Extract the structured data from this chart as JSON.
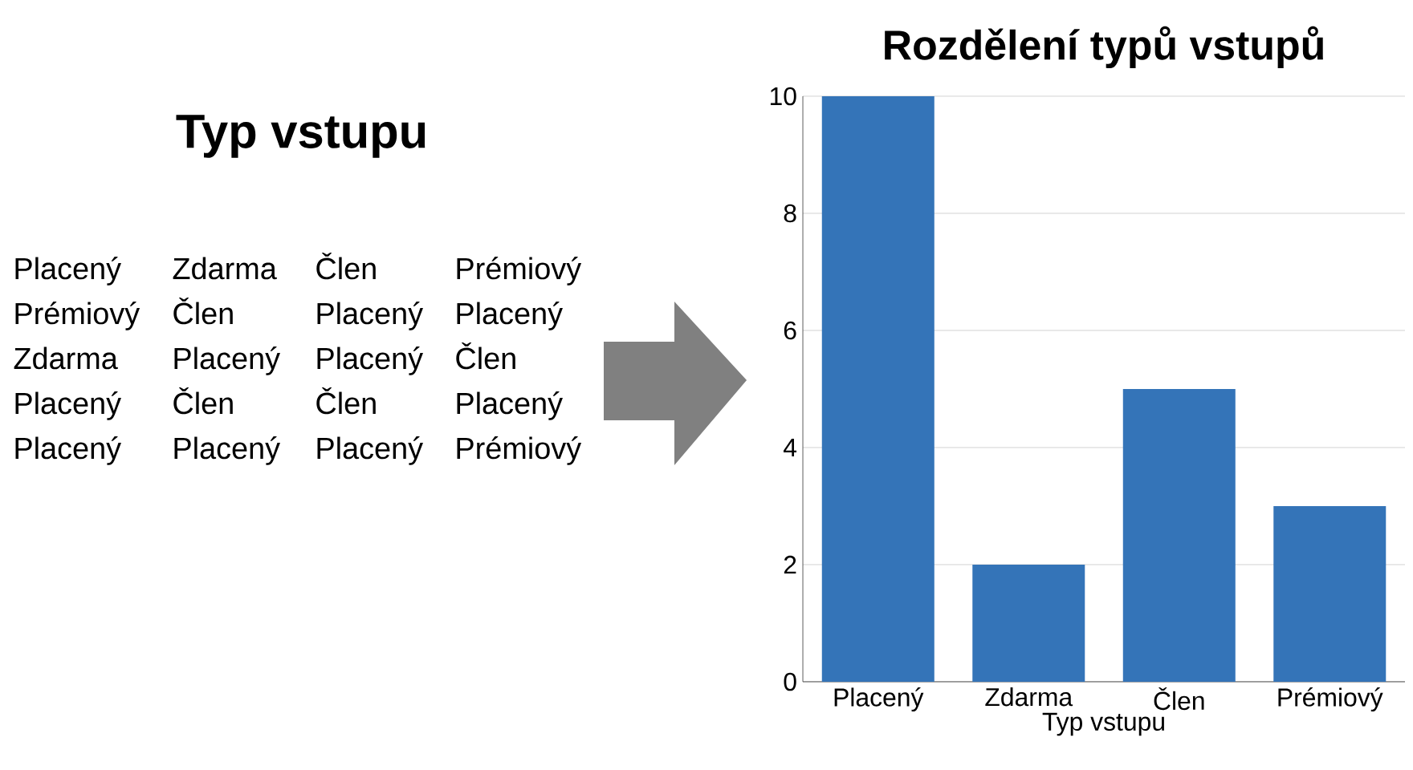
{
  "chart_data": {
    "type": "bar",
    "title": "Rozdělení typů vstupů",
    "xlabel": "Typ vstupu",
    "categories": [
      "Placený",
      "Zdarma",
      "Člen",
      "Prémiový"
    ],
    "values": [
      10,
      2,
      5,
      3
    ],
    "color": "#3474b8",
    "ylim": [
      0,
      10
    ],
    "yticks": [
      0,
      2,
      4,
      6,
      8,
      10
    ],
    "grid": "y",
    "annotations": [
      "Typ vstupu",
      "Placený",
      "Zdarma",
      "Člen",
      "Prémiový",
      "Prémiový",
      "Člen",
      "Placený",
      "Placený",
      "Zdarma",
      "Placený",
      "Placený",
      "Člen",
      "Placený",
      "Člen",
      "Člen",
      "Placený",
      "Placený",
      "Placený",
      "Placený",
      "Prémiový"
    ]
  }
}
